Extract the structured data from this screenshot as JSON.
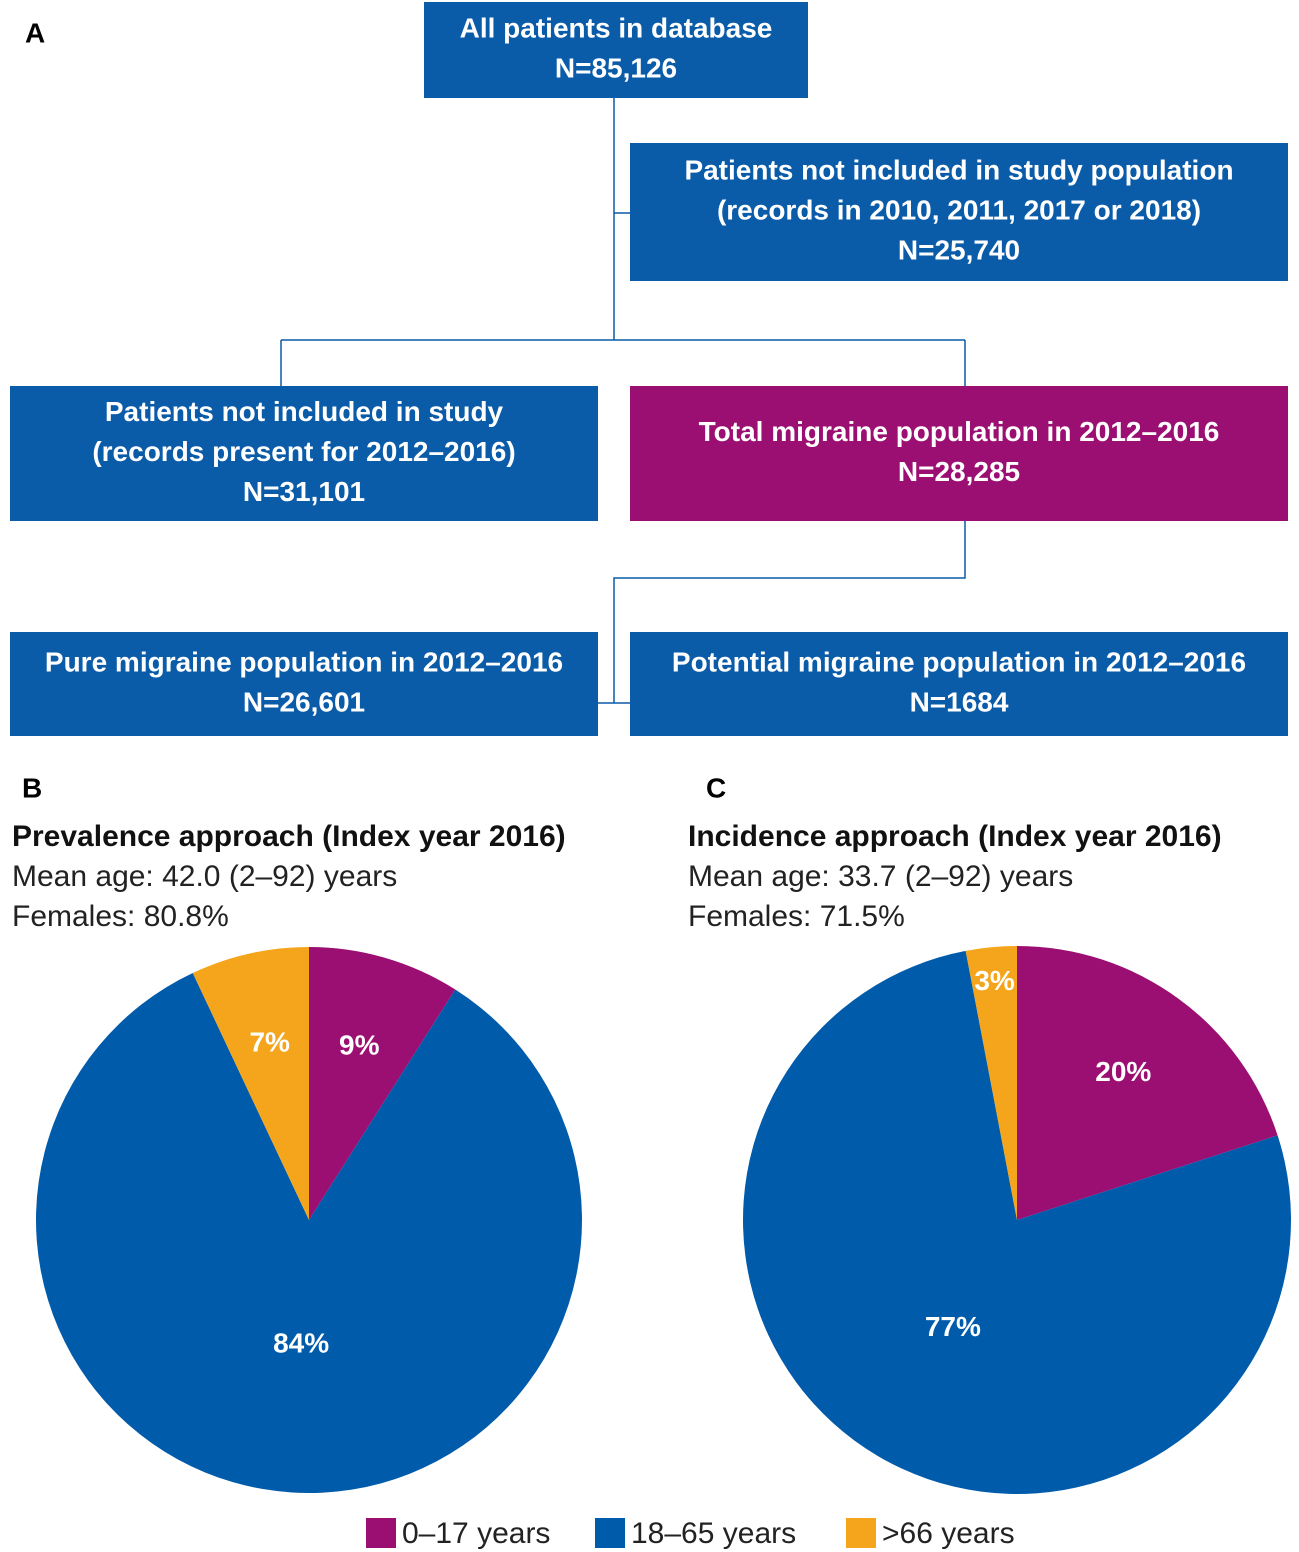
{
  "panel_a": {
    "label": "A",
    "nodes": [
      {
        "lines": [
          "All patients in database",
          "N=85,126"
        ]
      },
      {
        "lines": [
          "Patients not included in study population",
          "(records in 2010, 2011, 2017 or 2018)",
          "N=25,740"
        ]
      },
      {
        "lines": [
          "Patients not included in study",
          "(records present for 2012–2016)",
          "N=31,101"
        ]
      },
      {
        "lines": [
          "Total migraine population in 2012–2016",
          "N=28,285"
        ]
      },
      {
        "lines": [
          "Pure migraine population in 2012–2016",
          "N=26,601"
        ]
      },
      {
        "lines": [
          "Potential migraine population in 2012–2016",
          "N=1684"
        ]
      }
    ]
  },
  "chart_data": [
    {
      "type": "pie",
      "label": "B",
      "title": "Prevalence approach (Index year 2016)",
      "subtitle": [
        "Mean age: 42.0 (2–92) years",
        "Females: 80.8%"
      ],
      "categories": [
        "0–17 years",
        "18–65 years",
        ">66 years"
      ],
      "values": [
        9,
        84,
        7
      ],
      "value_labels": [
        "9%",
        "84%",
        "7%"
      ],
      "colors": [
        "#9b0e72",
        "#005bab",
        "#f5a51b"
      ]
    },
    {
      "type": "pie",
      "label": "C",
      "title": "Incidence approach (Index year 2016)",
      "subtitle": [
        "Mean age: 33.7 (2–92) years",
        "Females: 71.5%"
      ],
      "categories": [
        "0–17 years",
        "18–65 years",
        ">66 years"
      ],
      "values": [
        20,
        77,
        3
      ],
      "value_labels": [
        "20%",
        "77%",
        "3%"
      ],
      "colors": [
        "#9b0e72",
        "#005bab",
        "#f5a51b"
      ]
    }
  ]
}
